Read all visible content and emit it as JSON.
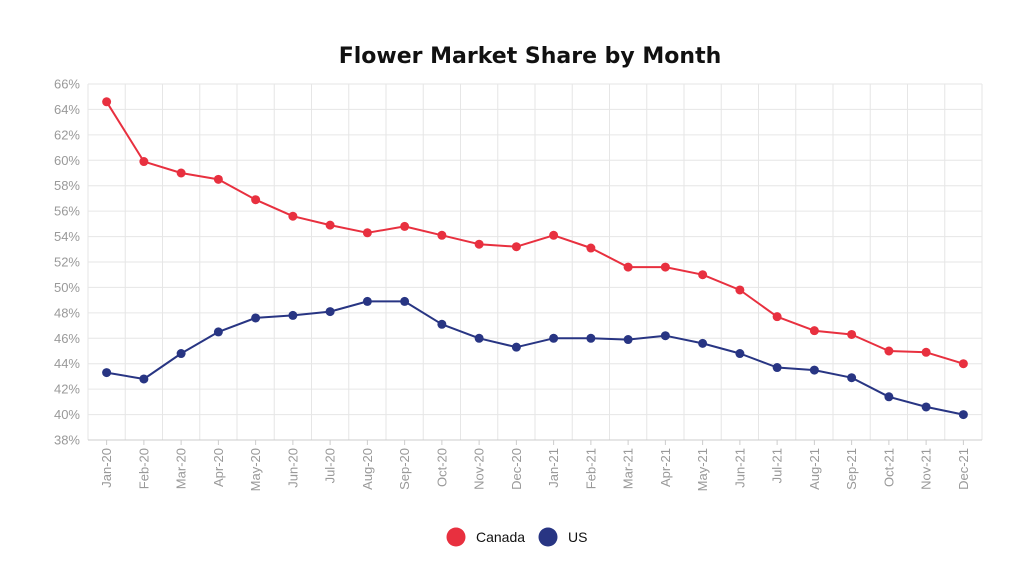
{
  "chart_data": {
    "type": "line",
    "title": "Flower Market Share by Month",
    "xlabel": "",
    "ylabel": "",
    "ylim": [
      38,
      66
    ],
    "y_ticks": [
      "38%",
      "40%",
      "42%",
      "44%",
      "46%",
      "48%",
      "50%",
      "52%",
      "54%",
      "56%",
      "58%",
      "60%",
      "62%",
      "64%",
      "66%"
    ],
    "categories": [
      "Jan-20",
      "Feb-20",
      "Mar-20",
      "Apr-20",
      "May-20",
      "Jun-20",
      "Jul-20",
      "Aug-20",
      "Sep-20",
      "Oct-20",
      "Nov-20",
      "Dec-20",
      "Jan-21",
      "Feb-21",
      "Mar-21",
      "Apr-21",
      "May-21",
      "Jun-21",
      "Jul-21",
      "Aug-21",
      "Sep-21",
      "Oct-21",
      "Nov-21",
      "Dec-21"
    ],
    "grid": true,
    "legend_position": "bottom-center",
    "series": [
      {
        "name": "Canada",
        "color": "#e8303f",
        "values": [
          64.6,
          59.9,
          59.0,
          58.5,
          56.9,
          55.6,
          54.9,
          54.3,
          54.8,
          54.1,
          53.4,
          53.2,
          54.1,
          53.1,
          51.6,
          51.6,
          51.0,
          49.8,
          47.7,
          46.6,
          46.3,
          45.0,
          44.9,
          44.0
        ]
      },
      {
        "name": "US",
        "color": "#283583",
        "values": [
          43.3,
          42.8,
          44.8,
          46.5,
          47.6,
          47.8,
          48.1,
          48.9,
          48.9,
          47.1,
          46.0,
          45.3,
          46.0,
          46.0,
          45.9,
          46.2,
          45.6,
          44.8,
          43.7,
          43.5,
          42.9,
          41.4,
          40.6,
          40.0
        ]
      }
    ]
  }
}
